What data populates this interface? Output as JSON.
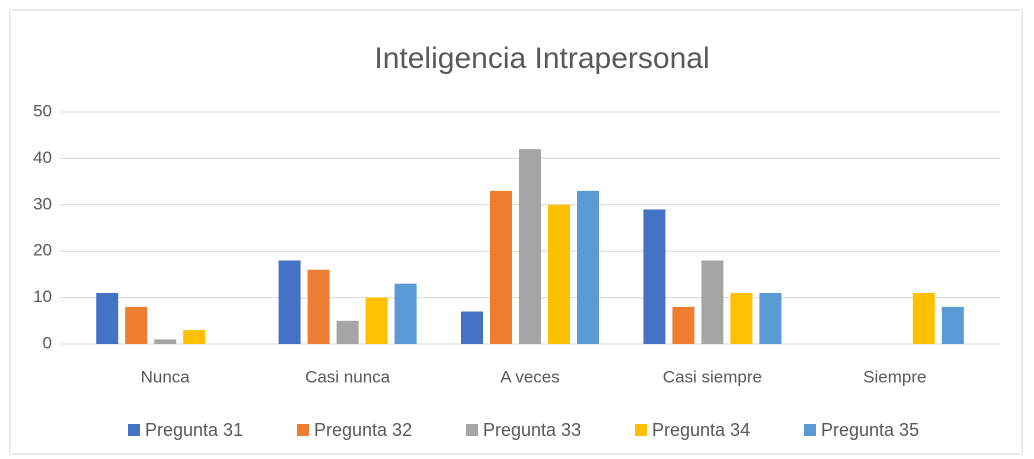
{
  "chart_data": {
    "type": "bar",
    "title": "Inteligencia Intrapersonal",
    "categories": [
      "Nunca",
      "Casi nunca",
      "A veces",
      "Casi siempre",
      "Siempre"
    ],
    "series": [
      {
        "name": "Pregunta 31",
        "color": "#4472c4",
        "values": [
          11,
          18,
          7,
          29,
          0
        ]
      },
      {
        "name": "Pregunta 32",
        "color": "#ed7d31",
        "values": [
          8,
          16,
          33,
          8,
          0
        ]
      },
      {
        "name": "Pregunta 33",
        "color": "#a5a5a5",
        "values": [
          1,
          5,
          42,
          18,
          0
        ]
      },
      {
        "name": "Pregunta 34",
        "color": "#ffc000",
        "values": [
          3,
          10,
          30,
          11,
          11
        ]
      },
      {
        "name": "Pregunta 35",
        "color": "#5b9bd5",
        "values": [
          0,
          13,
          33,
          11,
          8
        ]
      }
    ],
    "ylim": [
      0,
      50
    ],
    "yticks": [
      0,
      10,
      20,
      30,
      40,
      50
    ],
    "grid": true,
    "legend": "bottom"
  }
}
